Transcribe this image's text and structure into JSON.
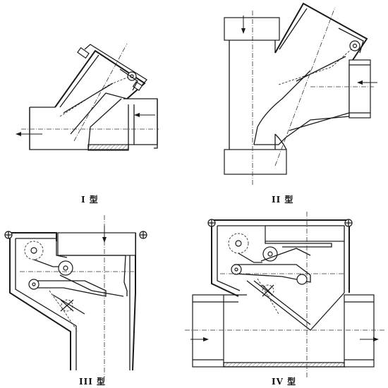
{
  "figure": {
    "panels": [
      {
        "id": "type-1",
        "label": "I 型"
      },
      {
        "id": "type-2",
        "label": "II 型"
      },
      {
        "id": "type-3",
        "label": "III 型"
      },
      {
        "id": "type-4",
        "label": "IV 型"
      }
    ]
  }
}
